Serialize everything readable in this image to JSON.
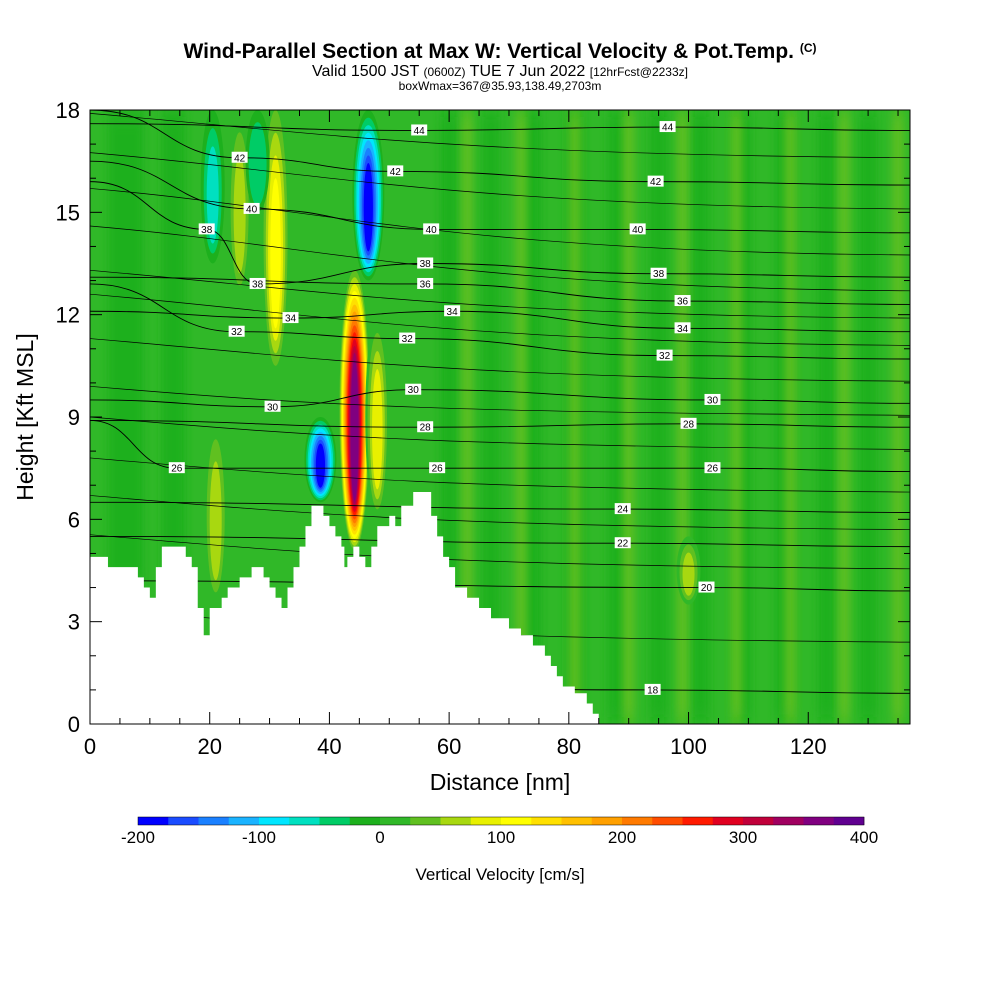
{
  "title": {
    "main": "Wind-Parallel Section at Max W: Vertical Velocity & Pot.Temp.",
    "copyright": "(C)",
    "valid_prefix": "Valid 1500 JST",
    "valid_utc": "(0600Z)",
    "valid_date": "TUE 7 Jun 2022",
    "forecast": "[12hrFcst@2233z]",
    "box_info": "boxWmax=367@35.93,138.49,2703m"
  },
  "chart_data": {
    "type": "heatmap",
    "xlabel": "Distance [nm]",
    "ylabel": "Height [Kft MSL]",
    "xlim": [
      0,
      137
    ],
    "ylim": [
      0,
      18
    ],
    "x_ticks": [
      0,
      20,
      40,
      60,
      80,
      100,
      120
    ],
    "y_ticks": [
      0,
      3,
      6,
      9,
      12,
      15,
      18
    ],
    "colorbar": {
      "title": "Vertical Velocity [cm/s]",
      "min": -200,
      "max": 400,
      "tick_labels": [
        -200,
        -100,
        0,
        100,
        200,
        300,
        400
      ],
      "colors": [
        "#0000ff",
        "#1a4cff",
        "#1a80ff",
        "#1ab3ff",
        "#00e6ff",
        "#00e0c0",
        "#00cc66",
        "#1db01d",
        "#30b828",
        "#60c020",
        "#a8d810",
        "#e8f000",
        "#ffff00",
        "#ffe000",
        "#ffc000",
        "#ffa000",
        "#ff7a00",
        "#ff4d00",
        "#ff1a00",
        "#e00020",
        "#c0003a",
        "#a00060",
        "#800080",
        "#600090"
      ]
    },
    "terrain": [
      [
        0,
        4.9
      ],
      [
        3,
        4.9
      ],
      [
        3,
        4.6
      ],
      [
        8,
        4.6
      ],
      [
        8,
        4.3
      ],
      [
        9,
        4.3
      ],
      [
        9,
        4.0
      ],
      [
        10,
        4.0
      ],
      [
        10,
        3.7
      ],
      [
        11,
        3.7
      ],
      [
        11,
        4.6
      ],
      [
        12,
        4.6
      ],
      [
        12,
        5.2
      ],
      [
        16,
        5.2
      ],
      [
        16,
        4.9
      ],
      [
        17,
        4.9
      ],
      [
        17,
        4.6
      ],
      [
        18,
        4.6
      ],
      [
        18,
        3.4
      ],
      [
        19,
        3.4
      ],
      [
        19,
        2.6
      ],
      [
        20,
        2.6
      ],
      [
        20,
        3.4
      ],
      [
        22,
        3.4
      ],
      [
        22,
        3.7
      ],
      [
        23,
        3.7
      ],
      [
        23,
        4.0
      ],
      [
        25,
        4.0
      ],
      [
        25,
        4.3
      ],
      [
        27,
        4.3
      ],
      [
        27,
        4.6
      ],
      [
        29,
        4.6
      ],
      [
        29,
        4.3
      ],
      [
        30,
        4.3
      ],
      [
        30,
        4.0
      ],
      [
        31,
        4.0
      ],
      [
        31,
        3.7
      ],
      [
        32,
        3.7
      ],
      [
        32,
        3.4
      ],
      [
        33,
        3.4
      ],
      [
        33,
        4.0
      ],
      [
        34,
        4.0
      ],
      [
        34,
        4.6
      ],
      [
        35,
        4.6
      ],
      [
        35,
        5.2
      ],
      [
        36,
        5.2
      ],
      [
        36,
        5.8
      ],
      [
        37,
        5.8
      ],
      [
        37,
        6.4
      ],
      [
        39,
        6.4
      ],
      [
        39,
        6.1
      ],
      [
        40,
        6.1
      ],
      [
        40,
        5.8
      ],
      [
        41,
        5.8
      ],
      [
        41,
        5.5
      ],
      [
        42,
        5.5
      ],
      [
        42,
        5.2
      ],
      [
        42.5,
        5.2
      ],
      [
        42.5,
        4.9
      ],
      [
        42.5,
        4.6
      ],
      [
        43,
        4.6
      ],
      [
        43,
        4.9
      ],
      [
        44,
        4.9
      ],
      [
        44,
        5.2
      ],
      [
        45,
        5.2
      ],
      [
        45,
        4.9
      ],
      [
        46,
        4.9
      ],
      [
        46,
        4.6
      ],
      [
        47,
        4.6
      ],
      [
        47,
        5.2
      ],
      [
        48,
        5.2
      ],
      [
        48,
        5.8
      ],
      [
        50,
        5.8
      ],
      [
        50,
        6.1
      ],
      [
        51,
        6.1
      ],
      [
        51,
        5.8
      ],
      [
        52,
        5.8
      ],
      [
        52,
        6.4
      ],
      [
        54,
        6.4
      ],
      [
        54,
        6.8
      ],
      [
        57,
        6.8
      ],
      [
        57,
        6.1
      ],
      [
        58,
        6.1
      ],
      [
        58,
        5.5
      ],
      [
        59,
        5.5
      ],
      [
        59,
        4.9
      ],
      [
        60,
        4.9
      ],
      [
        60,
        4.6
      ],
      [
        61,
        4.6
      ],
      [
        61,
        4.0
      ],
      [
        63,
        4.0
      ],
      [
        63,
        3.7
      ],
      [
        65,
        3.7
      ],
      [
        65,
        3.4
      ],
      [
        67,
        3.4
      ],
      [
        67,
        3.1
      ],
      [
        70,
        3.1
      ],
      [
        70,
        2.8
      ],
      [
        72,
        2.8
      ],
      [
        72,
        2.6
      ],
      [
        74,
        2.6
      ],
      [
        74,
        2.3
      ],
      [
        76,
        2.3
      ],
      [
        76,
        2.0
      ],
      [
        77,
        2.0
      ],
      [
        77,
        1.7
      ],
      [
        78,
        1.7
      ],
      [
        78,
        1.4
      ],
      [
        79,
        1.4
      ],
      [
        79,
        1.1
      ],
      [
        81,
        1.1
      ],
      [
        81,
        0.9
      ],
      [
        83,
        0.9
      ],
      [
        83,
        0.6
      ],
      [
        84,
        0.6
      ],
      [
        84,
        0.3
      ],
      [
        85,
        0.3
      ],
      [
        85,
        0
      ],
      [
        0,
        0
      ]
    ],
    "updraft_cores": [
      {
        "x": 44.2,
        "y_bottom": 5.0,
        "y_top": 13.5,
        "peak": 367
      },
      {
        "x": 48.0,
        "y_bottom": 6.0,
        "y_top": 12.0,
        "peak": 90
      },
      {
        "x": 31.0,
        "y_bottom": 10.5,
        "y_top": 18.0,
        "peak": 110
      },
      {
        "x": 21.0,
        "y_bottom": 3.5,
        "y_top": 9.0,
        "peak": 70
      },
      {
        "x": 25.0,
        "y_bottom": 12.5,
        "y_top": 18.0,
        "peak": 70
      },
      {
        "x": 100.0,
        "y_bottom": 3.5,
        "y_top": 5.5,
        "peak": 50
      }
    ],
    "downdraft_cores": [
      {
        "x": 38.5,
        "y_bottom": 6.5,
        "y_top": 9.0,
        "peak": -190
      },
      {
        "x": 46.5,
        "y_bottom": 13.0,
        "y_top": 18.0,
        "peak": -200
      },
      {
        "x": 20.5,
        "y_bottom": 13.5,
        "y_top": 18.0,
        "peak": -60
      },
      {
        "x": 28.0,
        "y_bottom": 15.0,
        "y_top": 18.0,
        "peak": -50
      }
    ],
    "contour_labels": [
      {
        "text": "44",
        "x": 55.0,
        "y": 17.4
      },
      {
        "text": "44",
        "x": 96.5,
        "y": 17.5
      },
      {
        "text": "42",
        "x": 25.0,
        "y": 16.6
      },
      {
        "text": "42",
        "x": 51.0,
        "y": 16.2
      },
      {
        "text": "42",
        "x": 94.5,
        "y": 15.9
      },
      {
        "text": "40",
        "x": 27.0,
        "y": 15.1
      },
      {
        "text": "40",
        "x": 57.0,
        "y": 14.5
      },
      {
        "text": "40",
        "x": 91.5,
        "y": 14.5
      },
      {
        "text": "38",
        "x": 19.5,
        "y": 14.5
      },
      {
        "text": "38",
        "x": 28.0,
        "y": 12.9
      },
      {
        "text": "38",
        "x": 56.0,
        "y": 13.5
      },
      {
        "text": "38",
        "x": 95.0,
        "y": 13.2
      },
      {
        "text": "36",
        "x": 56.0,
        "y": 12.9
      },
      {
        "text": "36",
        "x": 99.0,
        "y": 12.4
      },
      {
        "text": "34",
        "x": 33.5,
        "y": 11.9
      },
      {
        "text": "34",
        "x": 60.5,
        "y": 12.1
      },
      {
        "text": "34",
        "x": 99.0,
        "y": 11.6
      },
      {
        "text": "32",
        "x": 24.5,
        "y": 11.5
      },
      {
        "text": "32",
        "x": 53.0,
        "y": 11.3
      },
      {
        "text": "32",
        "x": 96.0,
        "y": 10.8
      },
      {
        "text": "30",
        "x": 30.5,
        "y": 9.3
      },
      {
        "text": "30",
        "x": 54.0,
        "y": 9.8
      },
      {
        "text": "30",
        "x": 104.0,
        "y": 9.5
      },
      {
        "text": "28",
        "x": 56.0,
        "y": 8.7
      },
      {
        "text": "28",
        "x": 100.0,
        "y": 8.8
      },
      {
        "text": "26",
        "x": 14.5,
        "y": 7.5
      },
      {
        "text": "26",
        "x": 58.0,
        "y": 7.5
      },
      {
        "text": "26",
        "x": 104.0,
        "y": 7.5
      },
      {
        "text": "24",
        "x": 89.0,
        "y": 6.3
      },
      {
        "text": "22",
        "x": 89.0,
        "y": 5.3
      },
      {
        "text": "20",
        "x": 103.0,
        "y": 4.0
      },
      {
        "text": "18",
        "x": 94.0,
        "y": 1.0
      }
    ]
  }
}
